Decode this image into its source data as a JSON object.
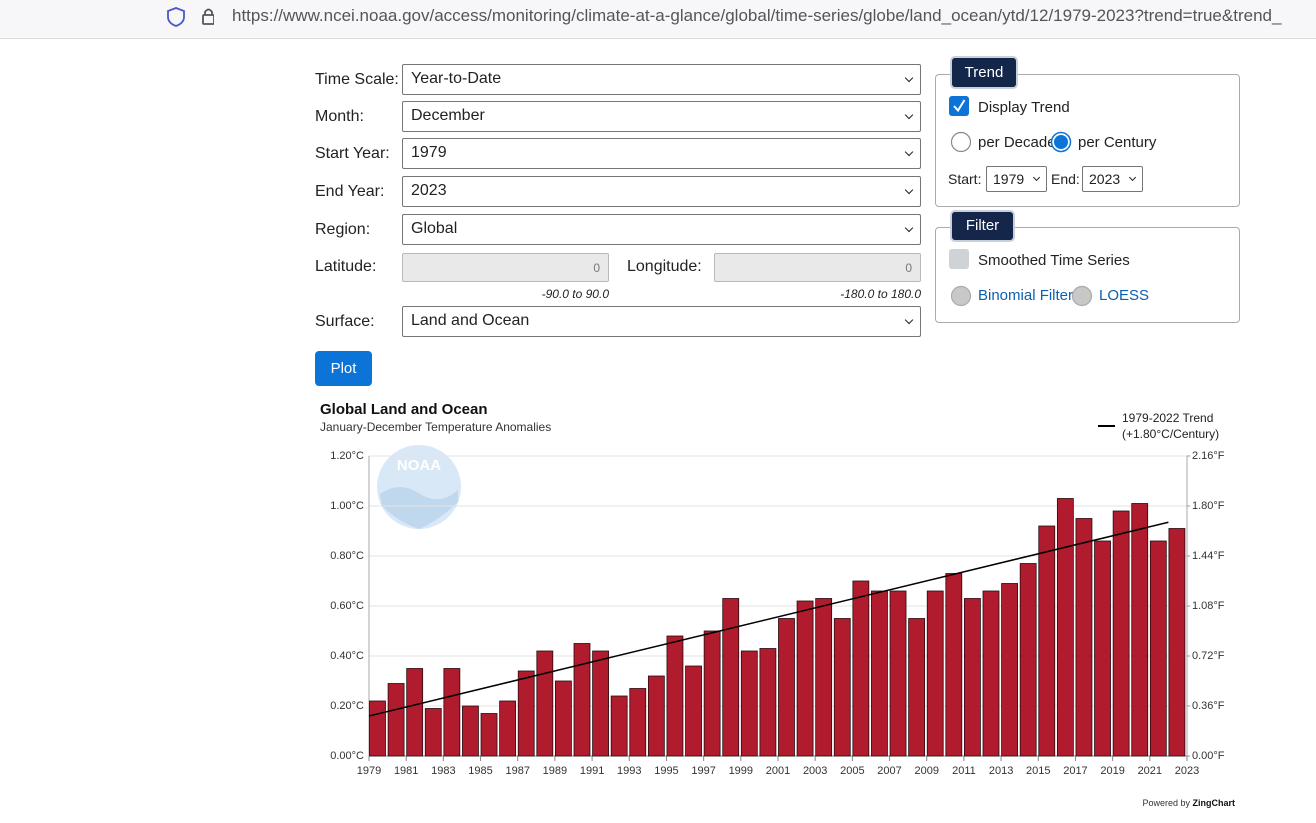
{
  "browser": {
    "url": "https://www.ncei.noaa.gov/access/monitoring/climate-at-a-glance/global/time-series/globe/land_ocean/ytd/12/1979-2023?trend=true&trend_"
  },
  "form": {
    "fields": [
      {
        "label": "Time Scale:",
        "value": "Year-to-Date"
      },
      {
        "label": "Month:",
        "value": "December"
      },
      {
        "label": "Start Year:",
        "value": "1979"
      },
      {
        "label": "End Year:",
        "value": "2023"
      },
      {
        "label": "Region:",
        "value": "Global"
      }
    ],
    "latitude": {
      "label": "Latitude:",
      "value": "0",
      "hint": "-90.0 to 90.0"
    },
    "longitude": {
      "label": "Longitude:",
      "value": "0",
      "hint": "-180.0 to 180.0"
    },
    "surface": {
      "label": "Surface:",
      "value": "Land and Ocean"
    },
    "plot_button": "Plot"
  },
  "trend_panel": {
    "title": "Trend",
    "display_trend": "Display Trend",
    "per_decade": "per Decade",
    "per_century": "per Century",
    "start_label": "Start:",
    "start_value": "1979",
    "end_label": "End:",
    "end_value": "2023"
  },
  "filter_panel": {
    "title": "Filter",
    "smoothed": "Smoothed Time Series",
    "binomial": "Binomial Filter",
    "loess": "LOESS"
  },
  "chart_data": {
    "type": "bar",
    "title": "Global Land and Ocean",
    "subtitle": "January-December Temperature Anomalies",
    "logo_text": "NOAA",
    "x": [
      1979,
      1980,
      1981,
      1982,
      1983,
      1984,
      1985,
      1986,
      1987,
      1988,
      1989,
      1990,
      1991,
      1992,
      1993,
      1994,
      1995,
      1996,
      1997,
      1998,
      1999,
      2000,
      2001,
      2002,
      2003,
      2004,
      2005,
      2006,
      2007,
      2008,
      2009,
      2010,
      2011,
      2012,
      2013,
      2014,
      2015,
      2016,
      2017,
      2018,
      2019,
      2020,
      2021,
      2022
    ],
    "values": [
      0.22,
      0.29,
      0.35,
      0.19,
      0.35,
      0.2,
      0.17,
      0.22,
      0.34,
      0.42,
      0.3,
      0.45,
      0.42,
      0.24,
      0.27,
      0.32,
      0.48,
      0.36,
      0.5,
      0.63,
      0.42,
      0.43,
      0.55,
      0.62,
      0.63,
      0.55,
      0.7,
      0.66,
      0.66,
      0.55,
      0.66,
      0.73,
      0.63,
      0.66,
      0.69,
      0.77,
      0.92,
      1.03,
      0.95,
      0.86,
      0.98,
      1.01,
      0.86,
      0.91
    ],
    "color": "#b01c2e",
    "trend": {
      "name": "1979-2022 Trend",
      "rate_label": "(+1.80°C/Century)",
      "x": [
        1979,
        2022
      ],
      "values": [
        0.16,
        0.935
      ],
      "color": "#000000"
    },
    "xlim": [
      1979,
      2023
    ],
    "xticks": [
      1979,
      1981,
      1983,
      1985,
      1987,
      1989,
      1991,
      1993,
      1995,
      1997,
      1999,
      2001,
      2003,
      2005,
      2007,
      2009,
      2011,
      2013,
      2015,
      2017,
      2019,
      2021,
      2023
    ],
    "ylim": [
      0,
      1.2
    ],
    "yticks": [
      {
        "value": 0,
        "label": "0.00°C"
      },
      {
        "value": 0.2,
        "label": "0.20°C"
      },
      {
        "value": 0.4,
        "label": "0.40°C"
      },
      {
        "value": 0.6,
        "label": "0.60°C"
      },
      {
        "value": 0.8,
        "label": "0.80°C"
      },
      {
        "value": 1.0,
        "label": "1.00°C"
      },
      {
        "value": 1.2,
        "label": "1.20°C"
      }
    ],
    "y2lim": [
      0,
      2.16
    ],
    "y2ticks": [
      {
        "value": 0,
        "label": "0.00°F"
      },
      {
        "value": 0.36,
        "label": "0.36°F"
      },
      {
        "value": 0.72,
        "label": "0.72°F"
      },
      {
        "value": 1.08,
        "label": "1.08°F"
      },
      {
        "value": 1.44,
        "label": "1.44°F"
      },
      {
        "value": 1.8,
        "label": "1.80°F"
      },
      {
        "value": 2.16,
        "label": "2.16°F"
      }
    ],
    "grid": true
  },
  "footer": {
    "powered_by": "Powered by",
    "brand": "ZingChart"
  }
}
